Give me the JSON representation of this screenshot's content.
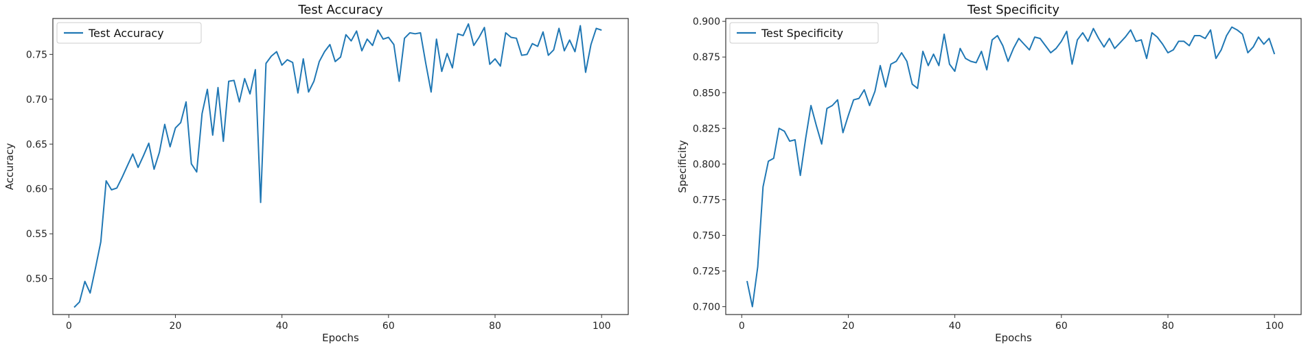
{
  "chart_data": [
    {
      "type": "line",
      "title": "Test  Accuracy",
      "xlabel": "Epochs",
      "ylabel": "Accuracy",
      "xlim": [
        -3,
        105
      ],
      "ylim": [
        0.46,
        0.79
      ],
      "xticks": [
        0,
        20,
        40,
        60,
        80,
        100
      ],
      "yticks": [
        0.5,
        0.55,
        0.6,
        0.65,
        0.7,
        0.75
      ],
      "ytick_labels": [
        "0.50",
        "0.55",
        "0.60",
        "0.65",
        "0.70",
        "0.75"
      ],
      "legend": "upper-left",
      "color": "#1f77b4",
      "series": [
        {
          "name": "Test  Accuracy",
          "x": [
            1,
            2,
            3,
            4,
            5,
            6,
            7,
            8,
            9,
            10,
            11,
            12,
            13,
            14,
            15,
            16,
            17,
            18,
            19,
            20,
            21,
            22,
            23,
            24,
            25,
            26,
            27,
            28,
            29,
            30,
            31,
            32,
            33,
            34,
            35,
            36,
            37,
            38,
            39,
            40,
            41,
            42,
            43,
            44,
            45,
            46,
            47,
            48,
            49,
            50,
            51,
            52,
            53,
            54,
            55,
            56,
            57,
            58,
            59,
            60,
            61,
            62,
            63,
            64,
            65,
            66,
            67,
            68,
            69,
            70,
            71,
            72,
            73,
            74,
            75,
            76,
            77,
            78,
            79,
            80,
            81,
            82,
            83,
            84,
            85,
            86,
            87,
            88,
            89,
            90,
            91,
            92,
            93,
            94,
            95,
            96,
            97,
            98,
            99,
            100
          ],
          "values": [
            0.468,
            0.474,
            0.497,
            0.484,
            0.512,
            0.541,
            0.609,
            0.599,
            0.601,
            0.613,
            0.626,
            0.639,
            0.624,
            0.637,
            0.651,
            0.622,
            0.641,
            0.672,
            0.647,
            0.668,
            0.674,
            0.697,
            0.628,
            0.619,
            0.684,
            0.711,
            0.66,
            0.713,
            0.653,
            0.72,
            0.721,
            0.697,
            0.723,
            0.706,
            0.733,
            0.585,
            0.74,
            0.748,
            0.753,
            0.738,
            0.744,
            0.741,
            0.707,
            0.745,
            0.708,
            0.72,
            0.742,
            0.753,
            0.761,
            0.742,
            0.747,
            0.772,
            0.765,
            0.776,
            0.754,
            0.767,
            0.76,
            0.777,
            0.767,
            0.769,
            0.761,
            0.72,
            0.768,
            0.774,
            0.773,
            0.774,
            0.74,
            0.708,
            0.767,
            0.731,
            0.751,
            0.735,
            0.773,
            0.771,
            0.784,
            0.76,
            0.769,
            0.78,
            0.739,
            0.745,
            0.737,
            0.774,
            0.769,
            0.768,
            0.749,
            0.75,
            0.762,
            0.759,
            0.775,
            0.749,
            0.755,
            0.779,
            0.754,
            0.766,
            0.753,
            0.782,
            0.73,
            0.761,
            0.779,
            0.777
          ]
        }
      ]
    },
    {
      "type": "line",
      "title": "Test  Specificity",
      "xlabel": "Epochs",
      "ylabel": "Specificity",
      "xlim": [
        -3,
        105
      ],
      "ylim": [
        0.6945,
        0.902
      ],
      "xticks": [
        0,
        20,
        40,
        60,
        80,
        100
      ],
      "yticks": [
        0.7,
        0.725,
        0.75,
        0.775,
        0.8,
        0.825,
        0.85,
        0.875,
        0.9
      ],
      "ytick_labels": [
        "0.700",
        "0.725",
        "0.750",
        "0.775",
        "0.800",
        "0.825",
        "0.850",
        "0.875",
        "0.900"
      ],
      "legend": "upper-left",
      "color": "#1f77b4",
      "series": [
        {
          "name": "Test  Specificity",
          "x": [
            1,
            2,
            3,
            4,
            5,
            6,
            7,
            8,
            9,
            10,
            11,
            12,
            13,
            14,
            15,
            16,
            17,
            18,
            19,
            20,
            21,
            22,
            23,
            24,
            25,
            26,
            27,
            28,
            29,
            30,
            31,
            32,
            33,
            34,
            35,
            36,
            37,
            38,
            39,
            40,
            41,
            42,
            43,
            44,
            45,
            46,
            47,
            48,
            49,
            50,
            51,
            52,
            53,
            54,
            55,
            56,
            57,
            58,
            59,
            60,
            61,
            62,
            63,
            64,
            65,
            66,
            67,
            68,
            69,
            70,
            71,
            72,
            73,
            74,
            75,
            76,
            77,
            78,
            79,
            80,
            81,
            82,
            83,
            84,
            85,
            86,
            87,
            88,
            89,
            90,
            91,
            92,
            93,
            94,
            95,
            96,
            97,
            98,
            99,
            100
          ],
          "values": [
            0.718,
            0.7,
            0.728,
            0.784,
            0.802,
            0.804,
            0.825,
            0.823,
            0.816,
            0.817,
            0.792,
            0.818,
            0.841,
            0.827,
            0.814,
            0.839,
            0.841,
            0.845,
            0.822,
            0.834,
            0.845,
            0.846,
            0.852,
            0.841,
            0.851,
            0.869,
            0.854,
            0.87,
            0.872,
            0.878,
            0.872,
            0.856,
            0.853,
            0.879,
            0.869,
            0.877,
            0.869,
            0.891,
            0.87,
            0.865,
            0.881,
            0.874,
            0.872,
            0.871,
            0.879,
            0.866,
            0.887,
            0.89,
            0.883,
            0.872,
            0.881,
            0.888,
            0.884,
            0.88,
            0.889,
            0.888,
            0.883,
            0.878,
            0.881,
            0.886,
            0.893,
            0.87,
            0.887,
            0.892,
            0.886,
            0.895,
            0.888,
            0.882,
            0.888,
            0.881,
            0.885,
            0.889,
            0.894,
            0.886,
            0.887,
            0.874,
            0.892,
            0.889,
            0.884,
            0.878,
            0.88,
            0.886,
            0.886,
            0.883,
            0.89,
            0.89,
            0.888,
            0.894,
            0.874,
            0.88,
            0.89,
            0.896,
            0.894,
            0.891,
            0.878,
            0.882,
            0.889,
            0.884,
            0.888,
            0.877
          ]
        }
      ]
    }
  ]
}
